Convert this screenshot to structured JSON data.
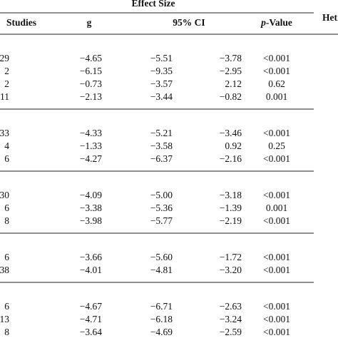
{
  "header": {
    "effect_size": "Effect Size",
    "heterogeneity": "Het",
    "columns": {
      "studies": "Studies",
      "g": "g",
      "ci": "95% CI",
      "p_value": [
        "p",
        "-Value"
      ]
    }
  },
  "table": {
    "groups": [
      [
        [
          "29",
          "−4.65",
          "−5.51",
          "−3.78",
          "<0.001"
        ],
        [
          "2",
          "−6.15",
          "−9.35",
          "−2.95",
          "<0.001"
        ],
        [
          "2",
          "−0.73",
          "−3.57",
          "2.12",
          "0.62"
        ],
        [
          "11",
          "−2.13",
          "−3.44",
          "−0.82",
          "0.001"
        ]
      ],
      [
        [
          "33",
          "−4.33",
          "−5.21",
          "−3.46",
          "<0.001"
        ],
        [
          "4",
          "−1.33",
          "−3.58",
          "0.92",
          "0.25"
        ],
        [
          "6",
          "−4.27",
          "−6.37",
          "−2.16",
          "<0.001"
        ]
      ],
      [
        [
          "30",
          "−4.09",
          "−5.00",
          "−3.18",
          "<0.001"
        ],
        [
          "6",
          "−3.38",
          "−5.36",
          "−1.39",
          "0.001"
        ],
        [
          "8",
          "−3.98",
          "−5.77",
          "−2.19",
          "<0.001"
        ]
      ],
      [
        [
          "6",
          "−3.66",
          "−5.60",
          "−1.72",
          "<0.001"
        ],
        [
          "38",
          "−4.01",
          "−4.81",
          "−3.20",
          "<0.001"
        ]
      ],
      [
        [
          "6",
          "−4.67",
          "−6.71",
          "−2.63",
          "<0.001"
        ],
        [
          "13",
          "−4.71",
          "−6.18",
          "−3.24",
          "<0.001"
        ],
        [
          "8",
          "−3.64",
          "−4.69",
          "−2.59",
          "<0.001"
        ]
      ]
    ]
  }
}
